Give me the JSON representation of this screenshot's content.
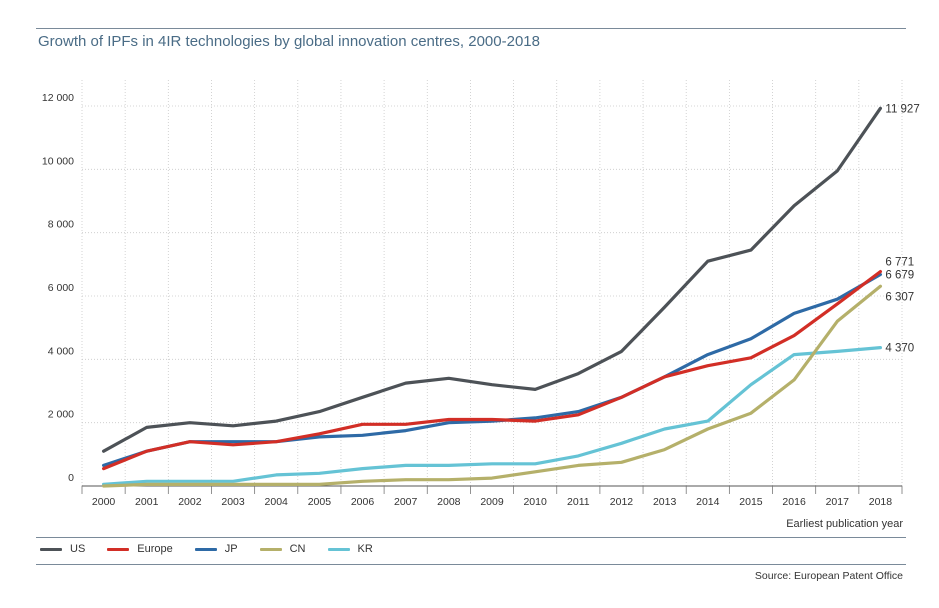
{
  "title": "Growth of IPFs in 4IR technologies by global innovation centres, 2000-2018",
  "source": "Source: European Patent Office",
  "chart_data": {
    "type": "line",
    "title": "Growth of IPFs in 4IR technologies by global innovation centres, 2000-2018",
    "xlabel": "Earliest publication year",
    "ylabel": "",
    "x": [
      "2000",
      "2001",
      "2002",
      "2003",
      "2004",
      "2005",
      "2006",
      "2007",
      "2008",
      "2009",
      "2010",
      "2011",
      "2012",
      "2013",
      "2014",
      "2015",
      "2016",
      "2017",
      "2018"
    ],
    "ylim": [
      0,
      12000
    ],
    "yticks": [
      0,
      2000,
      4000,
      6000,
      8000,
      10000,
      12000
    ],
    "ytick_labels": [
      "0",
      "2 000",
      "4 000",
      "6 000",
      "8 000",
      "10 000",
      "12 000"
    ],
    "grid": "dotted",
    "legend_position": "bottom",
    "series": [
      {
        "name": "US",
        "color": "#4d5257",
        "values": [
          1100,
          1850,
          2000,
          1900,
          2050,
          2350,
          2800,
          3250,
          3400,
          3200,
          3050,
          3550,
          4250,
          5650,
          7100,
          7450,
          8850,
          9950,
          11927
        ],
        "end_label": "11 927"
      },
      {
        "name": "Europe",
        "color": "#d22e26",
        "values": [
          550,
          1100,
          1400,
          1300,
          1400,
          1650,
          1950,
          1950,
          2100,
          2100,
          2050,
          2250,
          2800,
          3450,
          3800,
          4050,
          4750,
          5750,
          6771
        ],
        "end_label": "6 771"
      },
      {
        "name": "JP",
        "color": "#2e6aa6",
        "values": [
          650,
          1100,
          1400,
          1400,
          1400,
          1550,
          1600,
          1750,
          2000,
          2050,
          2150,
          2350,
          2800,
          3450,
          4150,
          4650,
          5450,
          5900,
          6679
        ],
        "end_label": "6 679"
      },
      {
        "name": "CN",
        "color": "#b5b06a",
        "values": [
          0,
          50,
          50,
          50,
          50,
          50,
          150,
          200,
          200,
          250,
          450,
          650,
          750,
          1150,
          1800,
          2300,
          3350,
          5200,
          6307
        ],
        "end_label": "6 307"
      },
      {
        "name": "KR",
        "color": "#65c3d5",
        "values": [
          50,
          150,
          150,
          150,
          350,
          400,
          550,
          650,
          650,
          700,
          700,
          950,
          1350,
          1800,
          2050,
          3200,
          4150,
          4250,
          4370
        ],
        "end_label": "4 370"
      }
    ]
  }
}
